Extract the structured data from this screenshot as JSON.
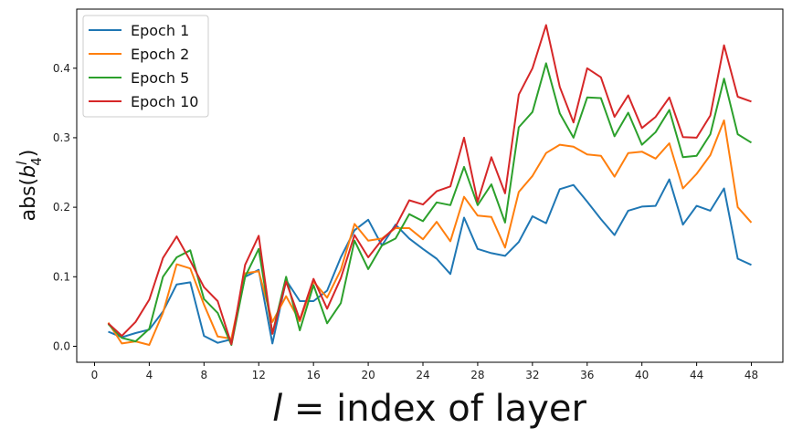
{
  "chart_data": {
    "type": "line",
    "xlabel_italic": "l",
    "xlabel_rest": " = index of layer",
    "ylabel_prefix": "abs(",
    "ylabel_base": "b",
    "ylabel_sup": "l",
    "ylabel_sub": "4",
    "ylabel_suffix": ")",
    "xlim": [
      -1.3,
      50.3
    ],
    "ylim": [
      -0.023,
      0.485
    ],
    "xticks": [
      0,
      4,
      8,
      12,
      16,
      20,
      24,
      28,
      32,
      36,
      40,
      44,
      48
    ],
    "yticks": [
      0.0,
      0.1,
      0.2,
      0.3,
      0.4
    ],
    "ytick_labels": [
      "0.0",
      "0.1",
      "0.2",
      "0.3",
      "0.4"
    ],
    "grid": false,
    "legend_position": "top-left",
    "x": [
      1,
      2,
      3,
      4,
      5,
      6,
      7,
      8,
      9,
      10,
      11,
      12,
      13,
      14,
      15,
      16,
      17,
      18,
      19,
      20,
      21,
      22,
      23,
      24,
      25,
      26,
      27,
      28,
      29,
      30,
      31,
      32,
      33,
      34,
      35,
      36,
      37,
      38,
      39,
      40,
      41,
      42,
      43,
      44,
      45,
      46,
      47,
      48
    ],
    "series": [
      {
        "name": "Epoch 1",
        "color": "#1f77b4",
        "values": [
          0.021,
          0.013,
          0.019,
          0.024,
          0.05,
          0.089,
          0.092,
          0.015,
          0.005,
          0.01,
          0.1,
          0.11,
          0.004,
          0.095,
          0.065,
          0.065,
          0.08,
          0.128,
          0.167,
          0.182,
          0.145,
          0.175,
          0.155,
          0.14,
          0.126,
          0.104,
          0.185,
          0.14,
          0.134,
          0.13,
          0.15,
          0.187,
          0.177,
          0.226,
          0.232,
          0.208,
          0.183,
          0.16,
          0.195,
          0.201,
          0.202,
          0.24,
          0.175,
          0.202,
          0.195,
          0.227,
          0.126,
          0.117
        ]
      },
      {
        "name": "Epoch 2",
        "color": "#ff7f0e",
        "values": [
          0.034,
          0.004,
          0.007,
          0.002,
          0.048,
          0.118,
          0.112,
          0.06,
          0.014,
          0.011,
          0.105,
          0.108,
          0.035,
          0.072,
          0.036,
          0.093,
          0.07,
          0.11,
          0.176,
          0.152,
          0.155,
          0.17,
          0.17,
          0.154,
          0.179,
          0.151,
          0.215,
          0.188,
          0.186,
          0.142,
          0.222,
          0.245,
          0.278,
          0.29,
          0.287,
          0.276,
          0.274,
          0.244,
          0.278,
          0.28,
          0.27,
          0.292,
          0.227,
          0.248,
          0.275,
          0.325,
          0.2,
          0.178
        ]
      },
      {
        "name": "Epoch 5",
        "color": "#2ca02c",
        "values": [
          0.032,
          0.012,
          0.007,
          0.025,
          0.1,
          0.128,
          0.138,
          0.068,
          0.048,
          0.002,
          0.1,
          0.14,
          0.018,
          0.1,
          0.023,
          0.088,
          0.033,
          0.062,
          0.152,
          0.111,
          0.145,
          0.155,
          0.19,
          0.18,
          0.207,
          0.203,
          0.258,
          0.203,
          0.233,
          0.178,
          0.315,
          0.337,
          0.407,
          0.335,
          0.3,
          0.358,
          0.357,
          0.302,
          0.336,
          0.29,
          0.308,
          0.34,
          0.272,
          0.274,
          0.305,
          0.385,
          0.305,
          0.293
        ]
      },
      {
        "name": "Epoch 10",
        "color": "#d62728",
        "values": [
          0.033,
          0.015,
          0.035,
          0.067,
          0.127,
          0.158,
          0.123,
          0.085,
          0.065,
          0.003,
          0.117,
          0.159,
          0.018,
          0.093,
          0.038,
          0.097,
          0.054,
          0.098,
          0.16,
          0.128,
          0.153,
          0.172,
          0.21,
          0.204,
          0.223,
          0.23,
          0.3,
          0.208,
          0.272,
          0.22,
          0.362,
          0.4,
          0.462,
          0.373,
          0.322,
          0.4,
          0.387,
          0.33,
          0.361,
          0.314,
          0.33,
          0.358,
          0.301,
          0.3,
          0.332,
          0.433,
          0.359,
          0.352
        ]
      }
    ]
  }
}
